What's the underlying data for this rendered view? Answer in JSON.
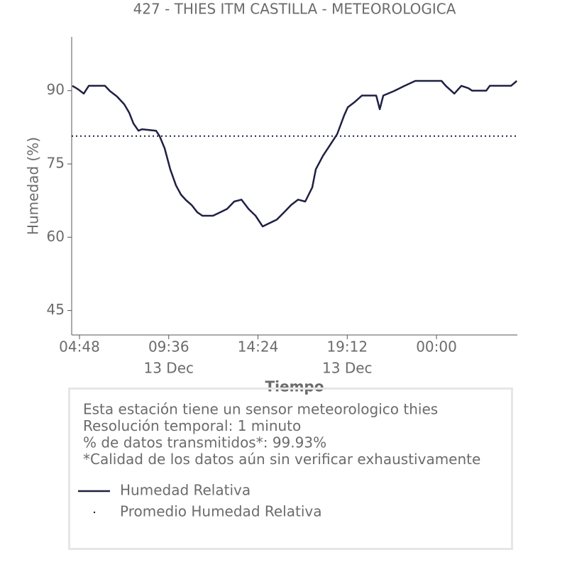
{
  "chart_data": {
    "type": "line",
    "title": "427 - THIES ITM CASTILLA - METEOROLOGICA",
    "y_label": "Humedad (%)",
    "x_label": "Tiempo",
    "x": [
      4.42,
      4.72,
      5.03,
      5.3,
      6.17,
      6.44,
      6.82,
      7.21,
      7.47,
      7.7,
      7.97,
      8.16,
      8.92,
      9.11,
      9.38,
      9.68,
      9.99,
      10.26,
      10.53,
      10.83,
      11.14,
      11.41,
      11.98,
      12.36,
      12.74,
      13.12,
      13.51,
      13.89,
      14.27,
      14.65,
      15.03,
      15.41,
      15.8,
      16.18,
      16.56,
      16.94,
      17.32,
      17.51,
      17.9,
      18.28,
      18.66,
      19.04,
      19.23,
      19.61,
      19.99,
      20.76,
      20.95,
      21.14,
      21.71,
      22.29,
      22.86,
      24.27,
      24.5,
      24.96,
      25.34,
      25.72,
      25.91,
      26.68,
      26.87,
      28.01,
      28.32
    ],
    "series": [
      {
        "name": "Humedad Relativa",
        "color": "#1f2044",
        "values": [
          91,
          90.3,
          89.4,
          91,
          91,
          89.9,
          88.8,
          87.2,
          85.5,
          83.3,
          81.8,
          82.1,
          81.8,
          80.7,
          78.2,
          73.9,
          70.6,
          68.7,
          67.6,
          66.6,
          65.1,
          64.4,
          64.4,
          65.1,
          65.8,
          67.3,
          67.7,
          65.8,
          64.4,
          62.2,
          62.9,
          63.6,
          65.1,
          66.6,
          67.7,
          67.3,
          70.2,
          73.9,
          76.7,
          78.9,
          81.1,
          85.0,
          86.6,
          87.7,
          89.0,
          89.0,
          86.2,
          89.0,
          89.9,
          91,
          92,
          92,
          91,
          89.4,
          91,
          90.5,
          90,
          90,
          91,
          91,
          92
        ]
      }
    ],
    "hline": {
      "name": "Promedio Humedad Relativa",
      "value": 80.7,
      "color": "#1f2044"
    },
    "xlim": [
      4.38,
      28.35
    ],
    "xticks": [
      {
        "value": 4.8,
        "label": "04:48"
      },
      {
        "value": 9.6,
        "label": "09:36"
      },
      {
        "value": 14.4,
        "label": "14:24"
      },
      {
        "value": 19.2,
        "label": "19:12"
      },
      {
        "value": 24,
        "label": "00:00"
      }
    ],
    "xtick_dates": [
      null,
      "13 Dec",
      null,
      "13 Dec",
      null
    ],
    "ylim": [
      40,
      101
    ],
    "yticks": [
      45,
      60,
      75,
      90
    ],
    "info": [
      "Esta estación tiene un sensor meteorologico thies",
      "Resolución temporal: 1 minuto",
      "% de datos transmitidos*: 99.93%",
      "*Calidad de los datos aún sin verificar exhaustivamente"
    ]
  }
}
